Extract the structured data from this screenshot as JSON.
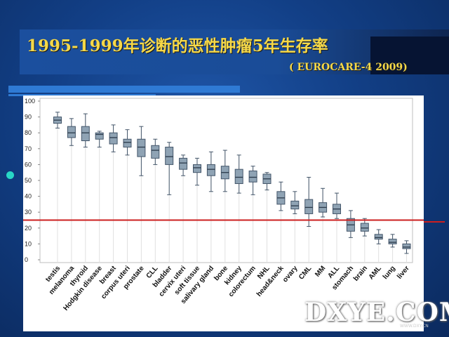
{
  "slide": {
    "title": "1995-1999年诊断的恶性肿瘤5年生存率",
    "subtitle": "( EUROCARE-4 2009)",
    "watermark": "DXYE.COM",
    "watermark_sub": "WWW.DXY.CN"
  },
  "colors": {
    "background": "#123f86",
    "title": "#f5d848",
    "box_fill": "#8fa3b4",
    "box_stroke": "#44566a",
    "reference_line": "#cc1f1f",
    "bullet": "#28d7c6"
  },
  "chart_data": {
    "type": "box",
    "title": "",
    "xlabel": "",
    "ylabel": "",
    "ylim": [
      0,
      100
    ],
    "yticks": [
      0,
      10,
      20,
      30,
      40,
      50,
      60,
      70,
      80,
      90,
      100
    ],
    "grid": false,
    "reference_line": 25,
    "categories": [
      "testis",
      "melanoma",
      "thyroid",
      "Hodgkin disease",
      "breast",
      "corpus uteri",
      "prostate",
      "CLL",
      "bladder",
      "cervix uteri",
      "soft tissue",
      "salivary gland",
      "bone",
      "kidney",
      "colorectum",
      "NHL",
      "head&neck",
      "ovary",
      "CML",
      "MM",
      "ALL",
      "stomach",
      "brain",
      "AML",
      "lung",
      "liver"
    ],
    "boxes": [
      {
        "min": 83,
        "q1": 86,
        "median": 88,
        "q3": 90,
        "max": 93
      },
      {
        "min": 72,
        "q1": 77,
        "median": 80,
        "q3": 84,
        "max": 89
      },
      {
        "min": 71,
        "q1": 75,
        "median": 80,
        "q3": 84,
        "max": 92
      },
      {
        "min": 71,
        "q1": 76,
        "median": 79,
        "q3": 80,
        "max": 81
      },
      {
        "min": 68,
        "q1": 73,
        "median": 77,
        "q3": 80,
        "max": 85
      },
      {
        "min": 66,
        "q1": 71,
        "median": 74,
        "q3": 76,
        "max": 82
      },
      {
        "min": 53,
        "q1": 65,
        "median": 71,
        "q3": 76,
        "max": 84
      },
      {
        "min": 60,
        "q1": 64,
        "median": 69,
        "q3": 72,
        "max": 76
      },
      {
        "min": 41,
        "q1": 60,
        "median": 65,
        "q3": 71,
        "max": 74
      },
      {
        "min": 53,
        "q1": 57,
        "median": 61,
        "q3": 64,
        "max": 66
      },
      {
        "min": 47,
        "q1": 55,
        "median": 58,
        "q3": 60,
        "max": 64
      },
      {
        "min": 43,
        "q1": 53,
        "median": 57,
        "q3": 60,
        "max": 68
      },
      {
        "min": 43,
        "q1": 51,
        "median": 55,
        "q3": 59,
        "max": 69
      },
      {
        "min": 42,
        "q1": 48,
        "median": 52,
        "q3": 57,
        "max": 66
      },
      {
        "min": 41,
        "q1": 49,
        "median": 52,
        "q3": 56,
        "max": 59
      },
      {
        "min": 44,
        "q1": 48,
        "median": 51,
        "q3": 54,
        "max": 55
      },
      {
        "min": 31,
        "q1": 35,
        "median": 39,
        "q3": 43,
        "max": 49
      },
      {
        "min": 29,
        "q1": 32,
        "median": 34,
        "q3": 37,
        "max": 43
      },
      {
        "min": 21,
        "q1": 29,
        "median": 33,
        "q3": 38,
        "max": 52
      },
      {
        "min": 27,
        "q1": 30,
        "median": 33,
        "q3": 36,
        "max": 45
      },
      {
        "min": 26,
        "q1": 29,
        "median": 32,
        "q3": 35,
        "max": 42
      },
      {
        "min": 14,
        "q1": 18,
        "median": 22,
        "q3": 26,
        "max": 31
      },
      {
        "min": 15,
        "q1": 18,
        "median": 20,
        "q3": 23,
        "max": 26
      },
      {
        "min": 10,
        "q1": 13,
        "median": 14,
        "q3": 16,
        "max": 19
      },
      {
        "min": 8,
        "q1": 10,
        "median": 11,
        "q3": 13,
        "max": 16
      },
      {
        "min": 4,
        "q1": 7,
        "median": 8,
        "q3": 10,
        "max": 12
      }
    ]
  }
}
